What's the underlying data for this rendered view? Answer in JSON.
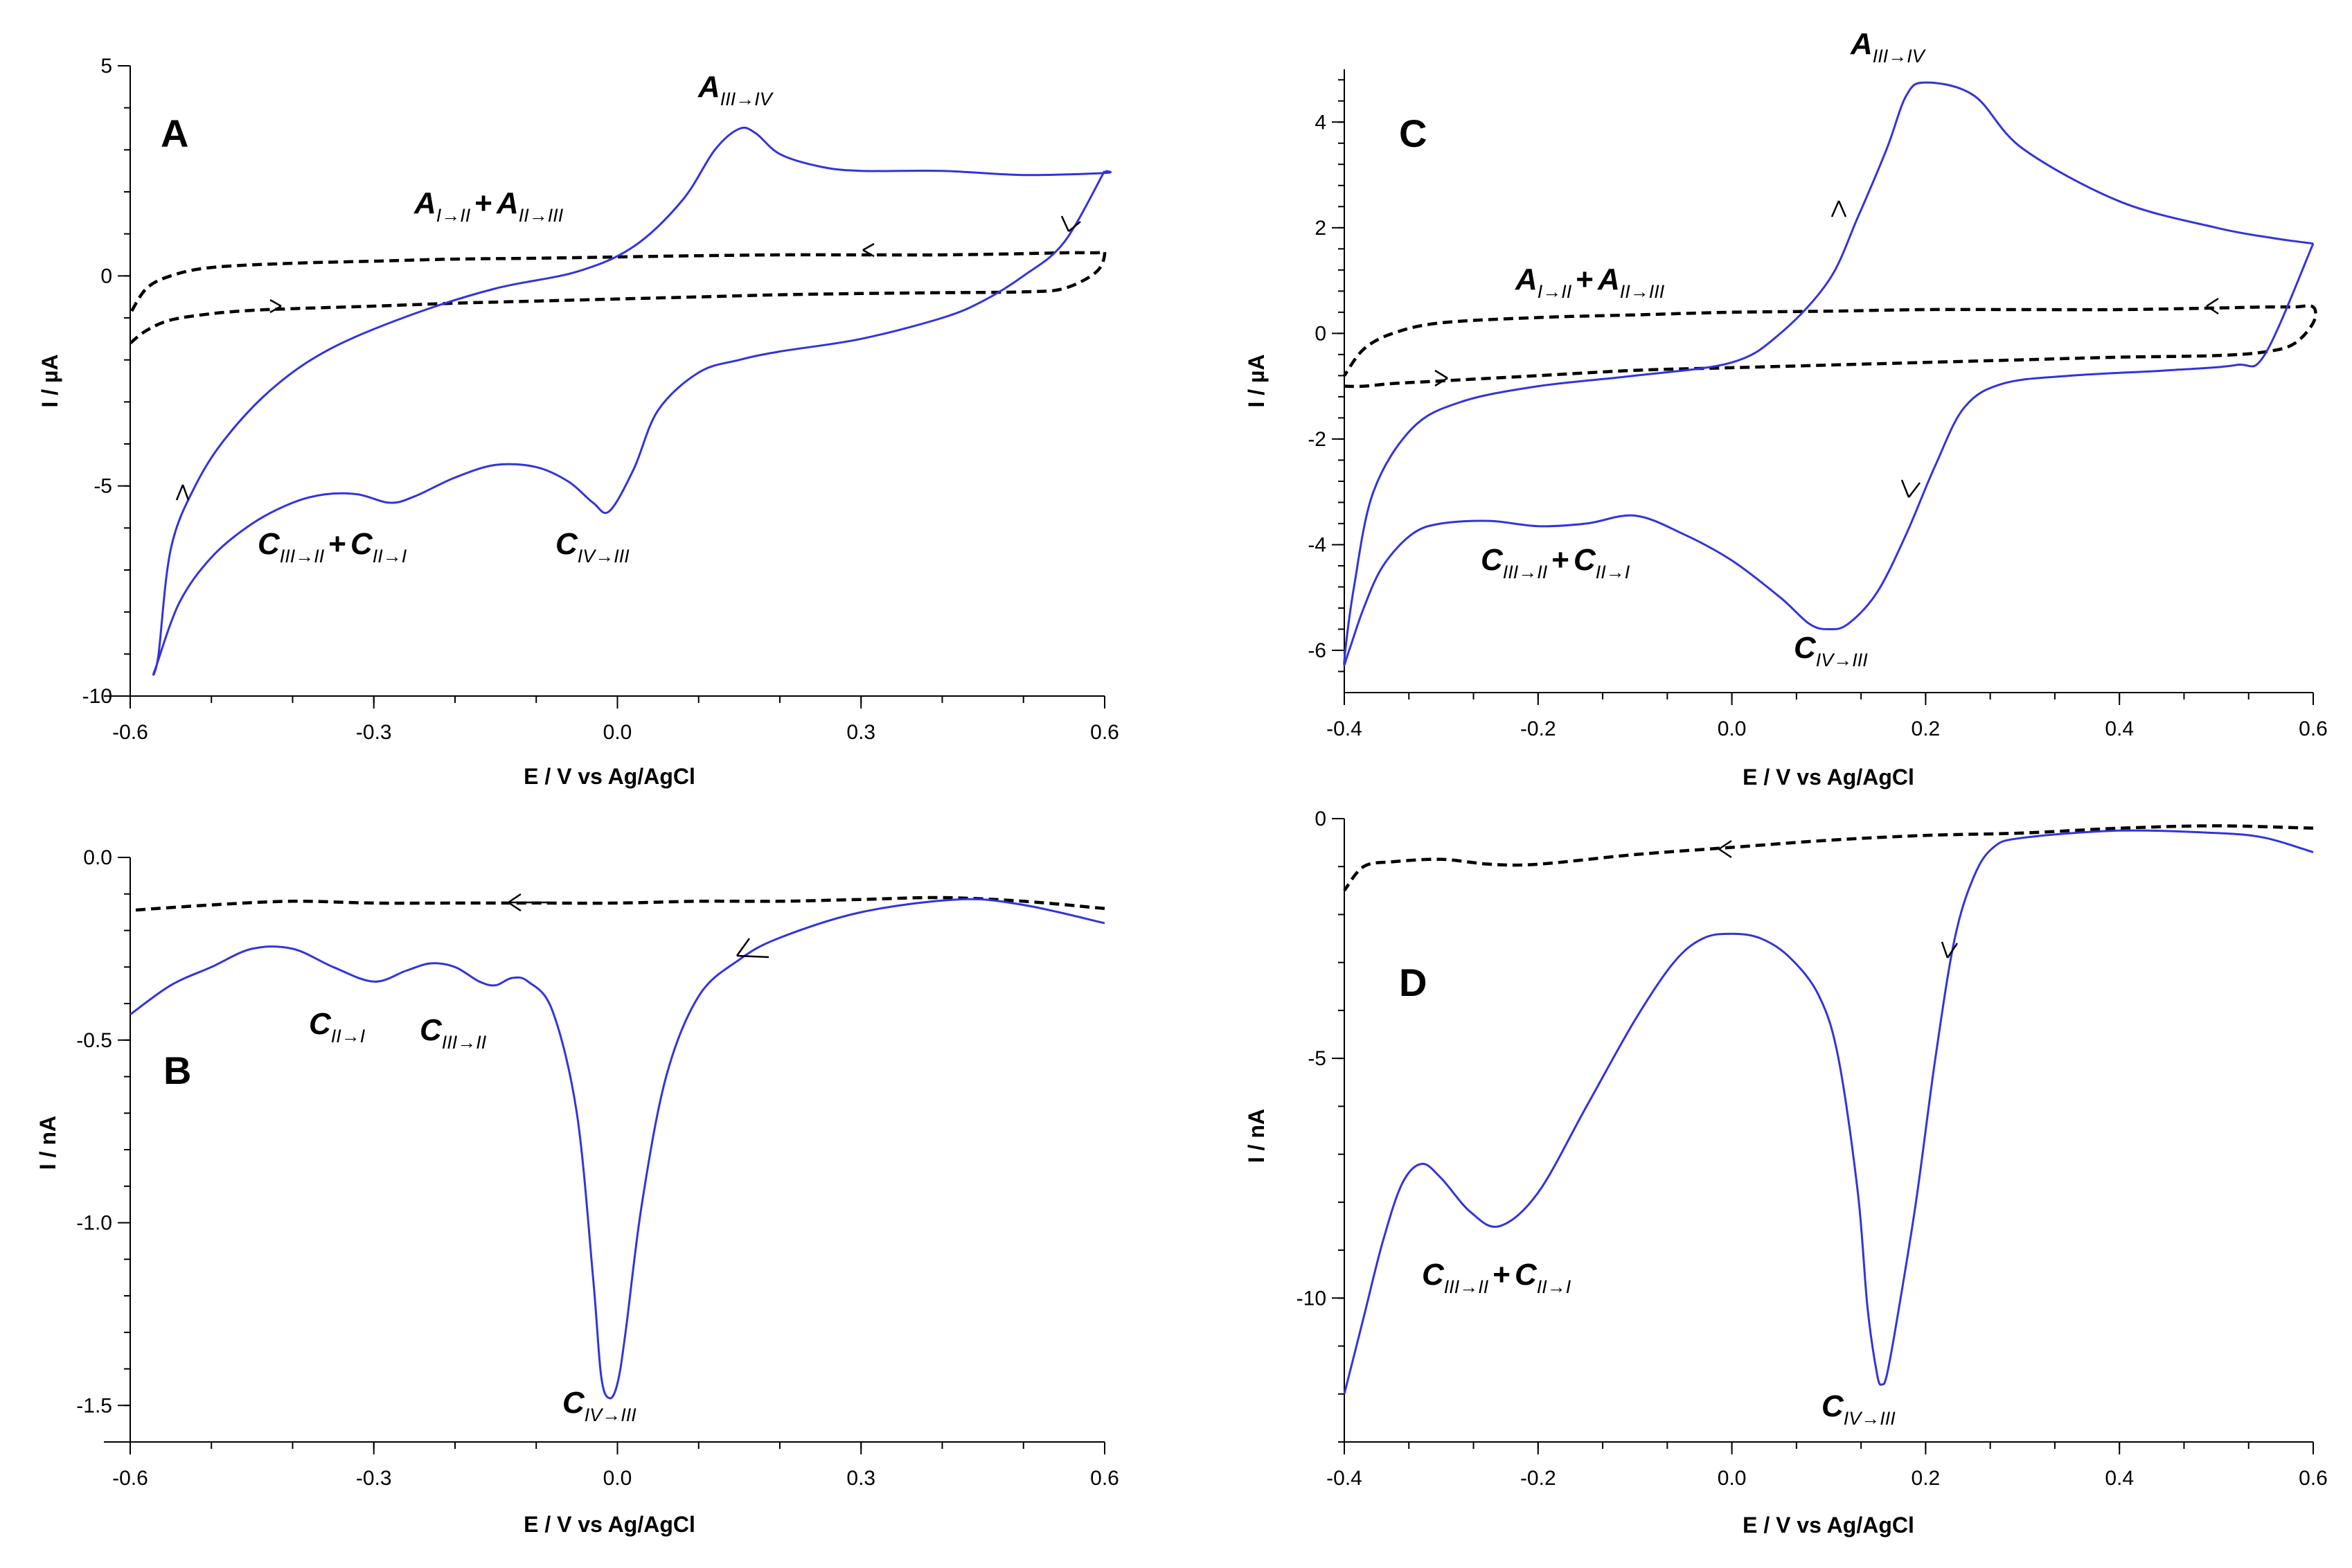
{
  "chart_data": [
    {
      "id": "A",
      "type": "line",
      "panel_label": "A",
      "xlabel": "E / V vs Ag/AgCl",
      "ylabel": "I / µA",
      "xlim": [
        -0.6,
        0.6
      ],
      "ylim": [
        -10,
        5
      ],
      "xticks": [
        -0.6,
        -0.3,
        0.0,
        0.3,
        0.6
      ],
      "xtick_labels": [
        "-0.6",
        "-0.3",
        "0.0",
        "0.3",
        "0.6"
      ],
      "yticks": [
        -10,
        -5,
        0,
        5
      ],
      "ytick_labels": [
        "-10",
        "-5",
        "0",
        "5"
      ],
      "series": [
        {
          "name": "dashed",
          "style": "dashed",
          "x": [
            -0.6,
            -0.58,
            -0.55,
            -0.5,
            -0.45,
            -0.4,
            -0.3,
            -0.2,
            -0.1,
            0.0,
            0.1,
            0.2,
            0.3,
            0.4,
            0.5,
            0.55,
            0.59,
            0.6,
            0.59,
            0.55,
            0.5,
            0.4,
            0.3,
            0.2,
            0.1,
            0.0,
            -0.1,
            -0.2,
            -0.3,
            -0.4,
            -0.5,
            -0.55,
            -0.58,
            -0.6
          ],
          "y": [
            -1.6,
            -1.3,
            -1.05,
            -0.9,
            -0.82,
            -0.78,
            -0.72,
            -0.65,
            -0.6,
            -0.55,
            -0.5,
            -0.45,
            -0.42,
            -0.4,
            -0.38,
            -0.3,
            0.1,
            0.55,
            0.55,
            0.55,
            0.53,
            0.5,
            0.5,
            0.5,
            0.48,
            0.45,
            0.42,
            0.4,
            0.35,
            0.3,
            0.2,
            0.0,
            -0.3,
            -0.9
          ]
        },
        {
          "name": "solid",
          "style": "solid",
          "x": [
            0.6,
            0.55,
            0.5,
            0.45,
            0.4,
            0.3,
            0.2,
            0.15,
            0.1,
            0.05,
            0.02,
            -0.01,
            -0.03,
            -0.06,
            -0.1,
            -0.15,
            -0.2,
            -0.25,
            -0.28,
            -0.32,
            -0.36,
            -0.4,
            -0.45,
            -0.5,
            -0.54,
            -0.57,
            -0.565,
            -0.55,
            -0.52,
            -0.48,
            -0.42,
            -0.35,
            -0.25,
            -0.15,
            -0.05,
            0.02,
            0.08,
            0.12,
            0.15,
            0.17,
            0.2,
            0.25,
            0.3,
            0.4,
            0.5,
            0.6,
            0.6
          ],
          "y": [
            2.5,
            0.8,
            0.0,
            -0.6,
            -1.0,
            -1.5,
            -1.8,
            -2.0,
            -2.3,
            -3.2,
            -4.6,
            -5.6,
            -5.4,
            -4.9,
            -4.55,
            -4.5,
            -4.8,
            -5.25,
            -5.4,
            -5.2,
            -5.2,
            -5.4,
            -5.9,
            -6.7,
            -7.8,
            -9.4,
            -9.0,
            -6.5,
            -5.0,
            -3.8,
            -2.6,
            -1.7,
            -0.9,
            -0.3,
            0.1,
            0.7,
            1.8,
            3.0,
            3.5,
            3.4,
            2.9,
            2.6,
            2.5,
            2.5,
            2.4,
            2.45,
            2.5
          ]
        }
      ],
      "annotations": [
        {
          "main": "A",
          "sub": "III→IV"
        },
        {
          "main": "A",
          "sub": "I→II",
          "plus": "+",
          "main2": "A",
          "sub2": "II→III"
        },
        {
          "main": "C",
          "sub": "III→II",
          "plus": "+",
          "main2": "C",
          "sub2": "II→I"
        },
        {
          "main": "C",
          "sub": "IV→III"
        }
      ]
    },
    {
      "id": "B",
      "type": "line",
      "panel_label": "B",
      "xlabel": "E / V vs Ag/AgCl",
      "ylabel": "I / nA",
      "xlim": [
        -0.6,
        0.6
      ],
      "ylim": [
        -1.6,
        0.0
      ],
      "xticks": [
        -0.6,
        -0.3,
        0.0,
        0.3,
        0.6
      ],
      "xtick_labels": [
        "-0.6",
        "-0.3",
        "0.0",
        "0.3",
        "0.6"
      ],
      "yticks": [
        -1.5,
        -1.0,
        -0.5,
        0.0
      ],
      "ytick_labels": [
        "-1.5",
        "-1.0",
        "-0.5",
        "0.0"
      ],
      "series": [
        {
          "name": "dashed",
          "style": "dashed",
          "x": [
            0.6,
            0.5,
            0.4,
            0.3,
            0.2,
            0.1,
            0.0,
            -0.1,
            -0.2,
            -0.3,
            -0.4,
            -0.5,
            -0.6
          ],
          "y": [
            -0.14,
            -0.12,
            -0.11,
            -0.115,
            -0.12,
            -0.12,
            -0.125,
            -0.125,
            -0.125,
            -0.125,
            -0.12,
            -0.13,
            -0.145
          ]
        },
        {
          "name": "solid",
          "style": "solid",
          "x": [
            0.6,
            0.5,
            0.42,
            0.3,
            0.2,
            0.15,
            0.1,
            0.06,
            0.03,
            0.01,
            0.0,
            -0.01,
            -0.02,
            -0.03,
            -0.05,
            -0.08,
            -0.11,
            -0.13,
            -0.15,
            -0.17,
            -0.2,
            -0.23,
            -0.26,
            -0.3,
            -0.35,
            -0.4,
            -0.45,
            -0.5,
            -0.55,
            -0.6
          ],
          "y": [
            -0.18,
            -0.13,
            -0.115,
            -0.15,
            -0.22,
            -0.28,
            -0.38,
            -0.6,
            -0.95,
            -1.3,
            -1.44,
            -1.48,
            -1.42,
            -1.15,
            -0.7,
            -0.42,
            -0.34,
            -0.33,
            -0.35,
            -0.34,
            -0.3,
            -0.29,
            -0.31,
            -0.34,
            -0.3,
            -0.25,
            -0.25,
            -0.3,
            -0.35,
            -0.43
          ]
        }
      ],
      "annotations": [
        {
          "main": "C",
          "sub": "II→I"
        },
        {
          "main": "C",
          "sub": "III→II"
        },
        {
          "main": "C",
          "sub": "IV→III"
        }
      ]
    },
    {
      "id": "C",
      "type": "line",
      "panel_label": "C",
      "xlabel": "E / V vs Ag/AgCl",
      "ylabel": "I / µA",
      "xlim": [
        -0.4,
        0.6
      ],
      "ylim": [
        -6.8,
        5.0
      ],
      "xticks": [
        -0.4,
        -0.2,
        0.0,
        0.2,
        0.4,
        0.6
      ],
      "xtick_labels": [
        "-0.4",
        "-0.2",
        "0.0",
        "0.2",
        "0.4",
        "0.6"
      ],
      "yticks": [
        -6,
        -4,
        -2,
        0,
        2,
        4
      ],
      "ytick_labels": [
        "-6",
        "-4",
        "-2",
        "0",
        "2",
        "4"
      ],
      "series": [
        {
          "name": "dashed",
          "style": "dashed",
          "x": [
            -0.4,
            -0.38,
            -0.35,
            -0.3,
            -0.2,
            -0.1,
            0.0,
            0.1,
            0.2,
            0.3,
            0.4,
            0.5,
            0.55,
            0.58,
            0.6,
            0.6,
            0.58,
            0.55,
            0.5,
            0.4,
            0.3,
            0.2,
            0.1,
            0.0,
            -0.1,
            -0.2,
            -0.3,
            -0.35,
            -0.38,
            -0.4
          ],
          "y": [
            -1.0,
            -1.0,
            -0.95,
            -0.9,
            -0.8,
            -0.7,
            -0.65,
            -0.6,
            -0.55,
            -0.5,
            -0.45,
            -0.42,
            -0.35,
            -0.2,
            0.2,
            0.5,
            0.5,
            0.5,
            0.48,
            0.45,
            0.45,
            0.45,
            0.42,
            0.4,
            0.35,
            0.3,
            0.2,
            0.0,
            -0.3,
            -0.8
          ]
        },
        {
          "name": "solid",
          "style": "solid",
          "x": [
            0.6,
            0.55,
            0.52,
            0.45,
            0.35,
            0.28,
            0.24,
            0.21,
            0.18,
            0.15,
            0.12,
            0.1,
            0.08,
            0.05,
            0.0,
            -0.05,
            -0.1,
            -0.15,
            -0.2,
            -0.25,
            -0.3,
            -0.33,
            -0.36,
            -0.38,
            -0.395,
            -0.4,
            -0.39,
            -0.37,
            -0.33,
            -0.28,
            -0.2,
            -0.1,
            0.0,
            0.05,
            0.1,
            0.13,
            0.16,
            0.18,
            0.2,
            0.25,
            0.3,
            0.4,
            0.5,
            0.56,
            0.6
          ],
          "y": [
            1.7,
            -0.4,
            -0.6,
            -0.7,
            -0.8,
            -0.95,
            -1.4,
            -2.5,
            -3.8,
            -4.9,
            -5.5,
            -5.6,
            -5.5,
            -5.0,
            -4.3,
            -3.8,
            -3.45,
            -3.6,
            -3.65,
            -3.55,
            -3.6,
            -3.8,
            -4.4,
            -5.2,
            -6.0,
            -6.2,
            -4.8,
            -3.0,
            -1.8,
            -1.3,
            -1.0,
            -0.8,
            -0.55,
            0.0,
            1.0,
            2.2,
            3.5,
            4.5,
            4.75,
            4.5,
            3.5,
            2.5,
            2.0,
            1.8,
            1.7
          ]
        }
      ],
      "annotations": [
        {
          "main": "A",
          "sub": "III→IV"
        },
        {
          "main": "A",
          "sub": "I→II",
          "plus": "+",
          "main2": "A",
          "sub2": "II→III"
        },
        {
          "main": "C",
          "sub": "III→II",
          "plus": "+",
          "main2": "C",
          "sub2": "II→I"
        },
        {
          "main": "C",
          "sub": "IV→III"
        }
      ]
    },
    {
      "id": "D",
      "type": "line",
      "panel_label": "D",
      "xlabel": "E / V vs Ag/AgCl",
      "ylabel": "I / nA",
      "xlim": [
        -0.4,
        0.6
      ],
      "ylim": [
        -13,
        0
      ],
      "xticks": [
        -0.4,
        -0.2,
        0.0,
        0.2,
        0.4,
        0.6
      ],
      "xtick_labels": [
        "-0.4",
        "-0.2",
        "0.0",
        "0.2",
        "0.4",
        "0.6"
      ],
      "yticks": [
        -10,
        -5,
        0
      ],
      "ytick_labels": [
        "-10",
        "-5",
        "0"
      ],
      "series": [
        {
          "name": "dashed",
          "style": "dashed",
          "x": [
            0.6,
            0.5,
            0.4,
            0.3,
            0.2,
            0.1,
            0.0,
            -0.1,
            -0.2,
            -0.25,
            -0.3,
            -0.35,
            -0.38,
            -0.4
          ],
          "y": [
            -0.2,
            -0.15,
            -0.2,
            -0.3,
            -0.35,
            -0.45,
            -0.6,
            -0.75,
            -0.95,
            -0.95,
            -0.85,
            -0.9,
            -1.0,
            -1.5
          ]
        },
        {
          "name": "solid",
          "style": "solid",
          "x": [
            0.6,
            0.55,
            0.5,
            0.4,
            0.3,
            0.27,
            0.25,
            0.23,
            0.21,
            0.19,
            0.17,
            0.16,
            0.155,
            0.15,
            0.14,
            0.13,
            0.11,
            0.09,
            0.06,
            0.03,
            0.0,
            -0.03,
            -0.06,
            -0.1,
            -0.15,
            -0.2,
            -0.24,
            -0.27,
            -0.3,
            -0.32,
            -0.34,
            -0.36,
            -0.38,
            -0.4
          ],
          "y": [
            -0.7,
            -0.4,
            -0.3,
            -0.25,
            -0.4,
            -0.6,
            -1.2,
            -2.5,
            -5.0,
            -8.0,
            -10.5,
            -11.6,
            -11.8,
            -11.6,
            -10.2,
            -7.8,
            -5.0,
            -3.7,
            -2.9,
            -2.5,
            -2.4,
            -2.5,
            -3.0,
            -4.2,
            -6.0,
            -7.8,
            -8.5,
            -8.2,
            -7.5,
            -7.2,
            -7.6,
            -8.8,
            -10.4,
            -12.0
          ]
        }
      ],
      "annotations": [
        {
          "main": "C",
          "sub": "III→II",
          "plus": "+",
          "main2": "C",
          "sub2": "II→I"
        },
        {
          "main": "C",
          "sub": "IV→III"
        }
      ]
    }
  ]
}
